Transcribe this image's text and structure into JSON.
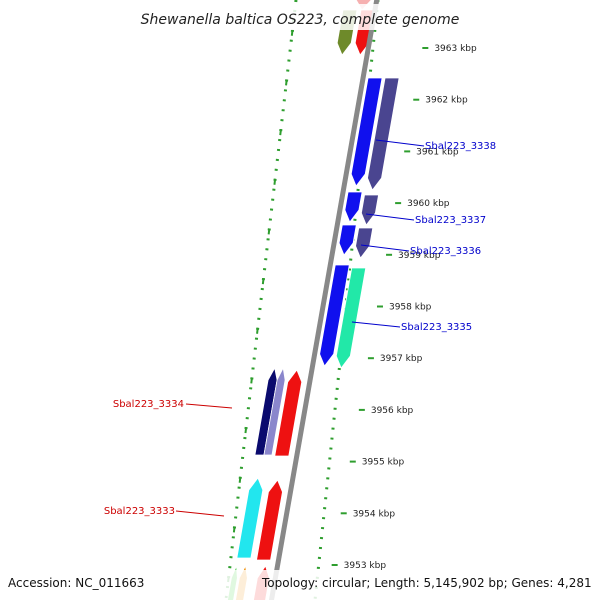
{
  "title": "Shewanella baltica OS223, complete genome",
  "footer": {
    "accession": "Accession: NC_011663",
    "topology": "Topology: circular; Length: 5,145,902 bp; Genes: 4,281"
  },
  "scale": {
    "unit": "kbp",
    "ticks": [
      {
        "kbp": 3963,
        "label": "3963 kbp"
      },
      {
        "kbp": 3962,
        "label": "3962 kbp"
      },
      {
        "kbp": 3961,
        "label": "3961 kbp"
      },
      {
        "kbp": 3960,
        "label": "3960 kbp"
      },
      {
        "kbp": 3959,
        "label": "3959 kbp"
      },
      {
        "kbp": 3958,
        "label": "3958 kbp"
      },
      {
        "kbp": 3957,
        "label": "3957 kbp"
      },
      {
        "kbp": 3956,
        "label": "3956 kbp"
      },
      {
        "kbp": 3955,
        "label": "3955 kbp"
      },
      {
        "kbp": 3954,
        "label": "3954 kbp"
      },
      {
        "kbp": 3953,
        "label": "3953 kbp"
      }
    ]
  },
  "gene_labels": [
    {
      "name": "Sbal223_3338",
      "color": "#0000cc"
    },
    {
      "name": "Sbal223_3337",
      "color": "#0000cc"
    },
    {
      "name": "Sbal223_3336",
      "color": "#0000cc"
    },
    {
      "name": "Sbal223_3335",
      "color": "#0000cc"
    },
    {
      "name": "Sbal223_3334",
      "color": "#cc0000"
    },
    {
      "name": "Sbal223_3333",
      "color": "#cc0000"
    }
  ],
  "colors": {
    "backbone": "#888888",
    "track_dots": "#2e9e2e",
    "blue": "#1010ee",
    "dark_purple": "#4a4590",
    "teal": "#22e8a8",
    "red": "#ee1111",
    "navy": "#0a0a6e",
    "lavender": "#8a86cc",
    "cyan": "#22e6ee",
    "olive": "#6e8a2a",
    "pink": "#f6b0b0",
    "orange": "#f08c00",
    "green": "#33cc33"
  }
}
